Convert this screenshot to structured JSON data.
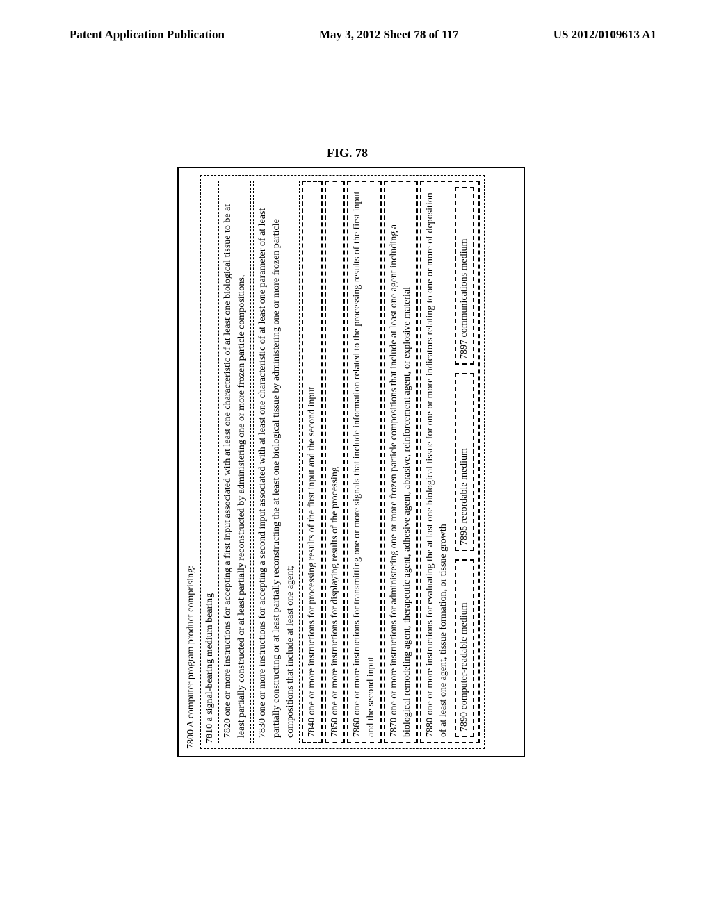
{
  "header": {
    "left": "Patent Application Publication",
    "center": "May 3, 2012  Sheet 78 of 117",
    "right": "US 2012/0109613 A1"
  },
  "figure": {
    "label": "FIG. 78",
    "title": "7800 A computer program product comprising:",
    "box7810": "7810  a signal-bearing medium bearing",
    "box7820": "7820 one or more instructions for accepting a first input associated with at least one characteristic of at least one biological tissue to be at least partially constructed or at least partially reconstructed by administering one or more frozen particle compositions,",
    "box7830": "7830 one or more instructions for accepting a second input associated with at least one characteristic of at least one parameter of at least partially constructing or at least partially reconstructing the at least one biological tissue by administering one or more frozen particle compositions that include at least one agent;",
    "box7840": "7840 one or more instructions for processing results of the first input and the second input",
    "box7850": "7850 one or more instructions for displaying results of the processing",
    "box7860": "7860 one or more instructions for transmitting one or more signals that include information related to the processing results of the first input and the second input",
    "box7870": "7870 one or more instructions for administering one or more frozen particle compositions that include at least one agent including a biological remodeling agent, therapeutic agent, adhesive agent, abrasive, reinforcement agent, or explosive material",
    "box7880": "7880 one or more instructions for evaluating the at last one biological tissue for one or more indicators relating to one or more of deposition of at least one agent, tissue formation, or tissue growth",
    "box7890": "7890 computer-readable medium",
    "box7895": "7895 recordable medium",
    "box7897": "7897 communications medium"
  }
}
